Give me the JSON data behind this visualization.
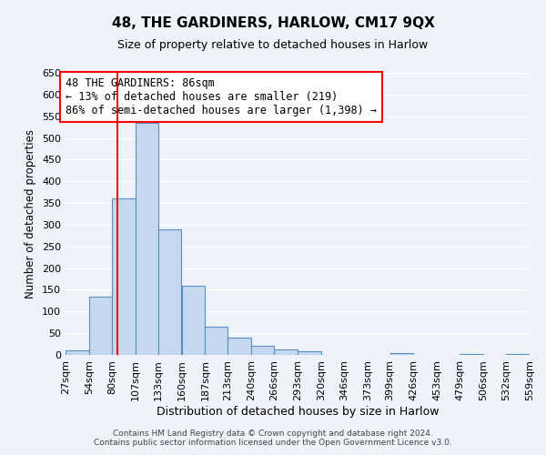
{
  "title": "48, THE GARDINERS, HARLOW, CM17 9QX",
  "subtitle": "Size of property relative to detached houses in Harlow",
  "xlabel": "Distribution of detached houses by size in Harlow",
  "ylabel": "Number of detached properties",
  "bin_edges": [
    27,
    54,
    80,
    107,
    133,
    160,
    187,
    213,
    240,
    266,
    293,
    320,
    346,
    373,
    399,
    426,
    453,
    479,
    506,
    532,
    559
  ],
  "bin_labels": [
    "27sqm",
    "54sqm",
    "80sqm",
    "107sqm",
    "133sqm",
    "160sqm",
    "187sqm",
    "213sqm",
    "240sqm",
    "266sqm",
    "293sqm",
    "320sqm",
    "346sqm",
    "373sqm",
    "399sqm",
    "426sqm",
    "453sqm",
    "479sqm",
    "506sqm",
    "532sqm",
    "559sqm"
  ],
  "counts": [
    10,
    135,
    360,
    535,
    290,
    160,
    65,
    40,
    20,
    13,
    8,
    0,
    0,
    0,
    5,
    0,
    0,
    2,
    0,
    2
  ],
  "bar_color": "#c5d8f0",
  "bar_edge_color": "#5a8fc3",
  "vline_x": 86,
  "vline_color": "red",
  "ylim": [
    0,
    650
  ],
  "yticks": [
    0,
    50,
    100,
    150,
    200,
    250,
    300,
    350,
    400,
    450,
    500,
    550,
    600,
    650
  ],
  "annotation_text": "48 THE GARDINERS: 86sqm\n← 13% of detached houses are smaller (219)\n86% of semi-detached houses are larger (1,398) →",
  "annotation_box_color": "white",
  "annotation_box_edge_color": "red",
  "footer_line1": "Contains HM Land Registry data © Crown copyright and database right 2024.",
  "footer_line2": "Contains public sector information licensed under the Open Government Licence v3.0.",
  "background_color": "#eef2f9",
  "grid_color": "white",
  "title_fontsize": 11,
  "subtitle_fontsize": 9
}
